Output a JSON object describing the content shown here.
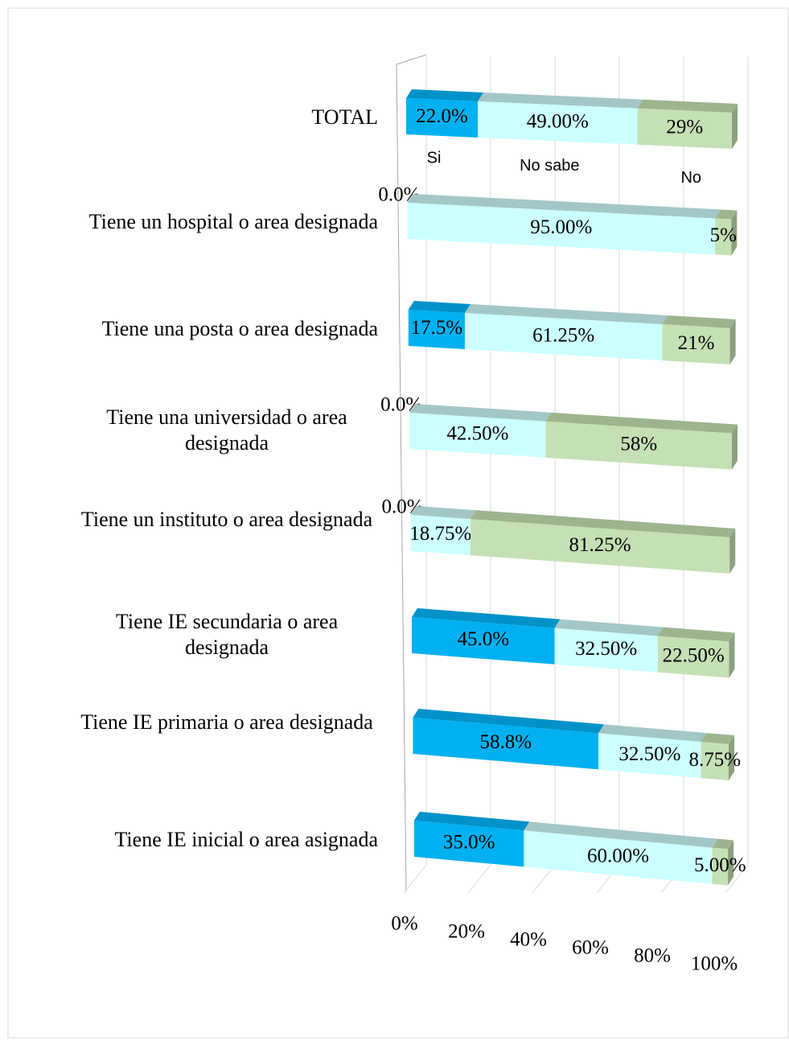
{
  "chart_data": {
    "type": "bar3d_stacked_horizontal",
    "categories": [
      "TOTAL",
      "Tiene un hospital o area designada",
      "Tiene una posta o area designada",
      "Tiene una universidad o area designada",
      "Tiene un instituto o area designada",
      "Tiene IE secundaria o area designada",
      "Tiene IE primaria o area designada",
      "Tiene IE inicial o area asignada"
    ],
    "series": [
      {
        "name": "Si",
        "color": "#00b0f0",
        "top_color": "#0092c9",
        "values": [
          22.0,
          0.0,
          17.5,
          0.0,
          0.0,
          45.0,
          58.8,
          35.0
        ],
        "value_labels": [
          "22.0%",
          "0.0%",
          "17.5%",
          "0.0%",
          "0.0%",
          "45.0%",
          "58.8%",
          "35.0%"
        ]
      },
      {
        "name": "No sabe",
        "color": "#ccffff",
        "top_color": "#a3c6c6",
        "values": [
          49.0,
          95.0,
          61.25,
          42.5,
          18.75,
          32.5,
          32.5,
          60.0
        ],
        "value_labels": [
          "49.00%",
          "95.00%",
          "61.25%",
          "42.50%",
          "18.75%",
          "32.50%",
          "32.50%",
          "60.00%"
        ]
      },
      {
        "name": "No",
        "color": "#c5e0b4",
        "top_color": "#9db48e",
        "values": [
          29,
          5,
          21,
          58,
          81.25,
          22.5,
          8.75,
          5.0
        ],
        "value_labels": [
          "29%",
          "5%",
          "21%",
          "58%",
          "81.25%",
          "22.50%",
          "8.75%",
          "5.00%"
        ]
      }
    ],
    "xlim": [
      0,
      100
    ],
    "xticks": [
      {
        "value": 0,
        "label": "0%"
      },
      {
        "value": 20,
        "label": "20%"
      },
      {
        "value": 40,
        "label": "40%"
      },
      {
        "value": 60,
        "label": "60%"
      },
      {
        "value": 80,
        "label": "80%"
      },
      {
        "value": 100,
        "label": "100%"
      }
    ],
    "grid": true
  }
}
